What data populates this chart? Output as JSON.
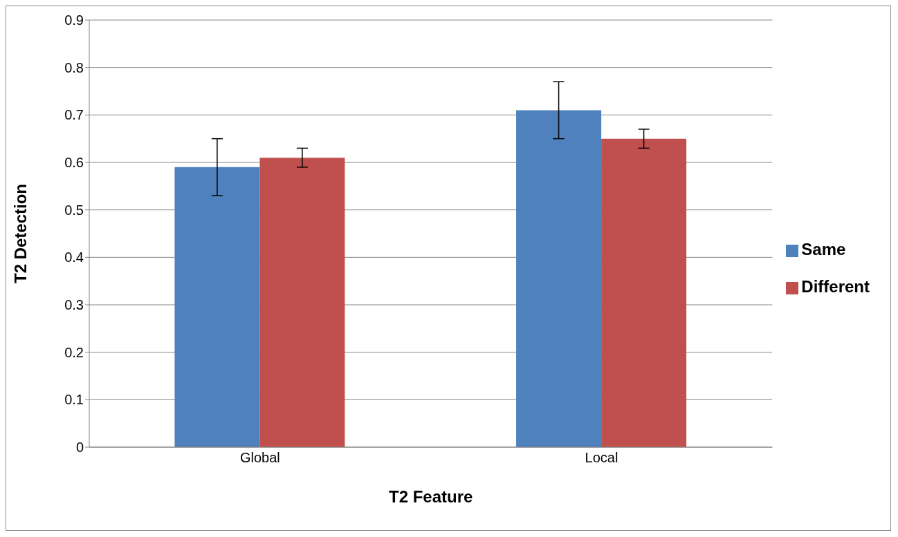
{
  "chart_data": {
    "type": "bar",
    "xlabel": "T2 Feature",
    "ylabel": "T2 Detection",
    "categories": [
      "Global",
      "Local"
    ],
    "series": [
      {
        "name": "Same",
        "color": "#4f81bd",
        "values": [
          0.59,
          0.71
        ],
        "errors": [
          0.06,
          0.06
        ]
      },
      {
        "name": "Different",
        "color": "#c0504d",
        "values": [
          0.61,
          0.65
        ],
        "errors": [
          0.02,
          0.02
        ]
      }
    ],
    "ylim": [
      0,
      0.9
    ],
    "yticks": [
      0,
      0.1,
      0.2,
      0.3,
      0.4,
      0.5,
      0.6,
      0.7,
      0.8,
      0.9
    ],
    "grid": "y",
    "legend": "right"
  }
}
